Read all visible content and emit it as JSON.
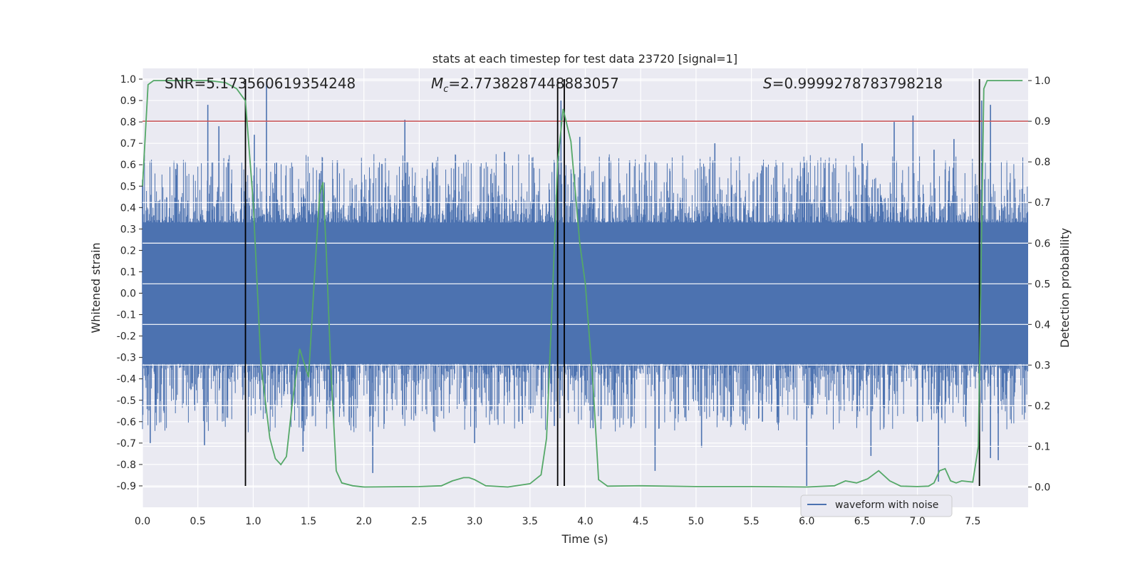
{
  "chart_data": {
    "type": "line",
    "title": "stats at each timestep for test data 23720 [signal=1]",
    "xlabel": "Time (s)",
    "ylabel": "Whitened strain",
    "y2label": "Detection probability",
    "xlim": [
      0.0,
      8.0
    ],
    "ylim": [
      -1.0,
      1.05
    ],
    "y2lim": [
      -0.05,
      1.03
    ],
    "grid": true,
    "x_ticks": [
      "0.0",
      "0.5",
      "1.0",
      "1.5",
      "2.0",
      "2.5",
      "3.0",
      "3.5",
      "4.0",
      "4.5",
      "5.0",
      "5.5",
      "6.0",
      "6.5",
      "7.0",
      "7.5"
    ],
    "y_ticks": [
      "1.0",
      "0.9",
      "0.8",
      "0.7",
      "0.6",
      "0.5",
      "0.4",
      "0.3",
      "0.2",
      "0.1",
      "0.0",
      "-0.1",
      "-0.2",
      "-0.3",
      "-0.4",
      "-0.5",
      "-0.6",
      "-0.7",
      "-0.8",
      "-0.9"
    ],
    "y2_ticks": [
      "1.0",
      "0.9",
      "0.8",
      "0.7",
      "0.6",
      "0.5",
      "0.4",
      "0.3",
      "0.2",
      "0.1",
      "0.0"
    ],
    "annotations": {
      "snr": "SNR=5.173560619354248",
      "mc_symbol": "M",
      "mc_sub": "c",
      "mc_value": "=2.7738287448883057",
      "s_symbol": "S",
      "s_value": "=0.9999278783798218"
    },
    "legend": {
      "label": "waveform with noise",
      "placement": "lower-right"
    },
    "threshold": {
      "axis": "y2",
      "value": 0.9,
      "color": "#c44e52"
    },
    "vertical_lines": [
      0.93,
      3.75,
      3.81,
      7.56
    ],
    "vline_range": [
      -0.9,
      1.0
    ],
    "waveform": {
      "name": "waveform with noise",
      "color": "#4c72b0",
      "x_range": [
        0.0,
        8.0
      ],
      "band": 0.33,
      "spikes": [
        [
          0.0,
          0.53
        ],
        [
          0.3,
          0.58
        ],
        [
          0.59,
          0.88
        ],
        [
          0.69,
          0.78
        ],
        [
          1.01,
          0.74
        ],
        [
          1.12,
          1.0
        ],
        [
          1.21,
          0.61
        ],
        [
          1.76,
          0.62
        ],
        [
          1.6,
          0.56
        ],
        [
          2.37,
          0.81
        ],
        [
          2.62,
          0.61
        ],
        [
          3.27,
          0.66
        ],
        [
          3.78,
          0.9
        ],
        [
          3.95,
          0.73
        ],
        [
          4.4,
          0.62
        ],
        [
          5.17,
          0.7
        ],
        [
          6.5,
          0.7
        ],
        [
          6.79,
          0.8
        ],
        [
          6.96,
          0.83
        ],
        [
          7.15,
          0.67
        ],
        [
          7.33,
          0.72
        ],
        [
          7.58,
          0.9
        ],
        [
          7.66,
          0.88
        ],
        [
          0.07,
          -0.7
        ],
        [
          0.56,
          -0.71
        ],
        [
          1.45,
          -0.74
        ],
        [
          2.08,
          -0.84
        ],
        [
          3.0,
          -0.7
        ],
        [
          3.72,
          -0.62
        ],
        [
          4.07,
          -0.63
        ],
        [
          4.63,
          -0.83
        ],
        [
          5.05,
          -0.72
        ],
        [
          6.0,
          -0.9
        ],
        [
          6.58,
          -0.76
        ],
        [
          7.19,
          -0.88
        ],
        [
          7.66,
          -0.77
        ],
        [
          7.73,
          -0.78
        ],
        [
          0.45,
          -0.42
        ],
        [
          1.2,
          -0.5
        ],
        [
          2.7,
          -0.55
        ],
        [
          3.4,
          -0.6
        ],
        [
          4.9,
          -0.58
        ],
        [
          5.6,
          -0.6
        ],
        [
          6.2,
          -0.5
        ],
        [
          7.0,
          -0.6
        ]
      ]
    },
    "detection_probability": {
      "name": "Detection probability",
      "color": "#55a868",
      "x": [
        0.0,
        0.05,
        0.1,
        0.2,
        0.4,
        0.6,
        0.75,
        0.85,
        0.93,
        1.0,
        1.07,
        1.15,
        1.2,
        1.25,
        1.3,
        1.35,
        1.42,
        1.5,
        1.55,
        1.6,
        1.63,
        1.66,
        1.7,
        1.75,
        1.8,
        1.9,
        2.0,
        2.5,
        2.7,
        2.8,
        2.9,
        2.95,
        3.0,
        3.1,
        3.3,
        3.5,
        3.6,
        3.65,
        3.7,
        3.75,
        3.8,
        3.87,
        3.95,
        4.0,
        4.07,
        4.12,
        4.2,
        4.5,
        5.0,
        5.5,
        6.0,
        6.25,
        6.35,
        6.45,
        6.55,
        6.65,
        6.75,
        6.85,
        7.0,
        7.1,
        7.15,
        7.2,
        7.25,
        7.3,
        7.35,
        7.4,
        7.5,
        7.55,
        7.6,
        7.63,
        7.7,
        7.75,
        7.95
      ],
      "y": [
        0.74,
        0.99,
        1.0,
        1.0,
        1.0,
        1.0,
        0.995,
        0.98,
        0.95,
        0.7,
        0.3,
        0.12,
        0.07,
        0.055,
        0.075,
        0.2,
        0.34,
        0.27,
        0.5,
        0.72,
        0.75,
        0.58,
        0.3,
        0.04,
        0.01,
        0.003,
        0.0,
        0.001,
        0.003,
        0.015,
        0.023,
        0.023,
        0.018,
        0.003,
        0.0,
        0.008,
        0.03,
        0.12,
        0.45,
        0.8,
        0.93,
        0.85,
        0.6,
        0.5,
        0.25,
        0.018,
        0.002,
        0.003,
        0.001,
        0.001,
        0.0,
        0.003,
        0.015,
        0.01,
        0.02,
        0.04,
        0.015,
        0.002,
        0.001,
        0.002,
        0.01,
        0.04,
        0.045,
        0.015,
        0.01,
        0.015,
        0.012,
        0.1,
        0.98,
        1.0,
        1.0,
        1.0,
        1.0
      ]
    }
  }
}
